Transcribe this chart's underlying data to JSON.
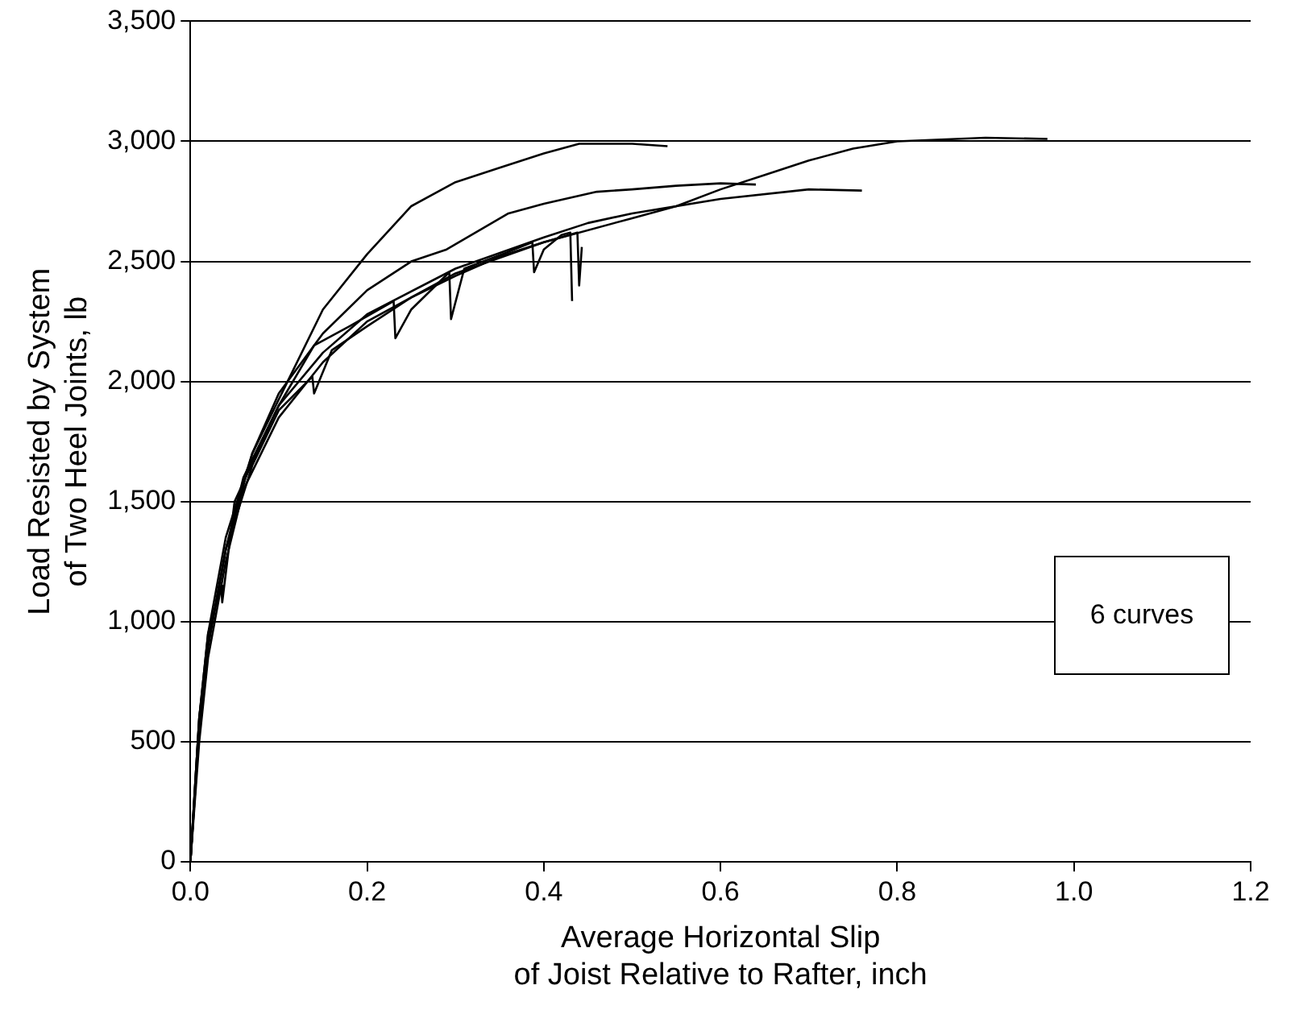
{
  "chart_data": {
    "type": "line",
    "xlabel": "Average Horizontal Slip\nof Joist Relative to Rafter, inch",
    "ylabel": "Load Resisted by System\nof Two Heel Joints, lb",
    "annotations": [
      "6 curves"
    ],
    "xlim": [
      0,
      1.2
    ],
    "xticks": [
      {
        "value": 0,
        "label": "0.0"
      },
      {
        "value": 0.2,
        "label": "0.2"
      },
      {
        "value": 0.4,
        "label": "0.4"
      },
      {
        "value": 0.6,
        "label": "0.6"
      },
      {
        "value": 0.8,
        "label": "0.8"
      },
      {
        "value": 1,
        "label": "1.0"
      },
      {
        "value": 1.2,
        "label": "1.2"
      }
    ],
    "ylim": [
      0,
      3500
    ],
    "yticks": [
      0,
      500,
      {
        "value": 1000,
        "label": "1,000"
      },
      {
        "value": 1500,
        "label": "1,500"
      },
      {
        "value": 2000,
        "label": "2,000"
      },
      {
        "value": 2500,
        "label": "2,500"
      },
      {
        "value": 3000,
        "label": "3,000"
      },
      {
        "value": 3500,
        "label": "3,500"
      }
    ],
    "grid": "y",
    "legend": false,
    "marker": "none",
    "line_style": "solid",
    "series": [
      {
        "color": "#000000",
        "x": [
          0,
          0.01,
          0.02,
          0.04,
          0.07,
          0.11,
          0.15,
          0.2,
          0.25,
          0.3,
          0.35,
          0.4,
          0.44,
          0.5,
          0.54
        ],
        "values": [
          0,
          600,
          900,
          1300,
          1700,
          2000,
          2300,
          2530,
          2730,
          2830,
          2890,
          2950,
          2990,
          2990,
          2980
        ]
      },
      {
        "color": "#000000",
        "x": [
          0,
          0.01,
          0.02,
          0.04,
          0.07,
          0.1,
          0.15,
          0.2,
          0.25,
          0.29,
          0.36,
          0.4,
          0.46,
          0.5,
          0.55,
          0.6,
          0.64
        ],
        "values": [
          0,
          600,
          950,
          1350,
          1700,
          1950,
          2200,
          2380,
          2500,
          2550,
          2700,
          2740,
          2790,
          2800,
          2815,
          2825,
          2820
        ]
      },
      {
        "color": "#000000",
        "x": [
          0,
          0.01,
          0.02,
          0.04,
          0.06,
          0.1,
          0.15,
          0.2,
          0.3,
          0.4,
          0.5,
          0.55,
          0.6,
          0.65,
          0.7,
          0.75,
          0.8,
          0.9,
          0.97
        ],
        "values": [
          0,
          500,
          850,
          1250,
          1550,
          1850,
          2080,
          2250,
          2450,
          2580,
          2680,
          2730,
          2800,
          2860,
          2920,
          2970,
          3000,
          3015,
          3010
        ]
      },
      {
        "color": "#000000",
        "x": [
          0,
          0.01,
          0.02,
          0.04,
          0.06,
          0.1,
          0.15,
          0.2,
          0.3,
          0.4,
          0.45,
          0.5,
          0.6,
          0.7,
          0.76
        ],
        "values": [
          0,
          550,
          900,
          1300,
          1600,
          1900,
          2120,
          2280,
          2470,
          2600,
          2660,
          2700,
          2760,
          2800,
          2795
        ]
      },
      {
        "color": "#000000",
        "x": [
          0,
          0.01,
          0.02,
          0.035,
          0.036,
          0.05,
          0.1,
          0.14,
          0.18,
          0.23,
          0.232,
          0.25,
          0.293,
          0.295,
          0.31,
          0.36,
          0.387,
          0.389,
          0.4,
          0.42,
          0.43,
          0.432
        ],
        "values": [
          0,
          600,
          950,
          1150,
          1080,
          1500,
          1900,
          2150,
          2230,
          2335,
          2180,
          2300,
          2455,
          2260,
          2470,
          2540,
          2580,
          2455,
          2550,
          2610,
          2620,
          2335
        ]
      },
      {
        "color": "#000000",
        "x": [
          0,
          0.01,
          0.02,
          0.04,
          0.07,
          0.1,
          0.138,
          0.14,
          0.16,
          0.2,
          0.25,
          0.3,
          0.35,
          0.4,
          0.438,
          0.44,
          0.443
        ],
        "values": [
          0,
          550,
          900,
          1300,
          1650,
          1880,
          2020,
          1950,
          2130,
          2230,
          2350,
          2440,
          2520,
          2580,
          2620,
          2400,
          2560
        ]
      }
    ]
  }
}
